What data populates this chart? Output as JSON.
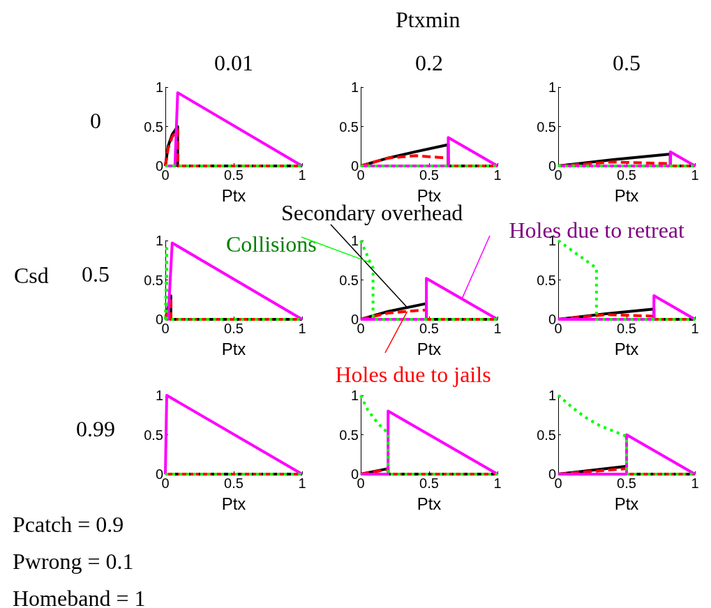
{
  "chart_data": [
    {
      "type": "line",
      "title": "0.01",
      "ylabel": "0",
      "xlabel": "Ptx",
      "xlim": [
        0,
        1
      ],
      "ylim": [
        0,
        1
      ],
      "xticks": [
        0,
        0.5,
        1
      ],
      "yticks": [
        0,
        0.5,
        1
      ],
      "marker": "none",
      "series": [
        {
          "color": "#000000",
          "line_style": "solid",
          "x": [
            0,
            0.02,
            0.05,
            0.09,
            0.09,
            1
          ],
          "values": [
            0,
            0.25,
            0.4,
            0.5,
            0,
            0
          ]
        },
        {
          "color": "#ff0000",
          "line_style": "dashed",
          "x": [
            0,
            0.02,
            0.05,
            0.09,
            0.09,
            1
          ],
          "values": [
            0,
            0.22,
            0.37,
            0.46,
            0,
            0
          ]
        },
        {
          "color": "#ff00ff",
          "line_style": "solid",
          "x": [
            0,
            0.07,
            0.09,
            1
          ],
          "values": [
            0,
            0,
            0.93,
            0
          ]
        },
        {
          "color": "#00ff00",
          "line_style": "dotted",
          "x": [
            0,
            1
          ],
          "values": [
            0,
            0
          ]
        }
      ]
    },
    {
      "type": "line",
      "title": "0.2",
      "xlabel": "Ptx",
      "annotations": [
        "Ptxmin"
      ],
      "xlim": [
        0,
        1
      ],
      "ylim": [
        0,
        1
      ],
      "xticks": [
        0,
        0.5,
        1
      ],
      "yticks": [
        0,
        0.5,
        1
      ],
      "marker": "none",
      "series": [
        {
          "color": "#000000",
          "line_style": "solid",
          "x": [
            0,
            0.2,
            0.4,
            0.64,
            0.64,
            1
          ],
          "values": [
            0,
            0.1,
            0.18,
            0.27,
            0,
            0
          ]
        },
        {
          "color": "#ff0000",
          "line_style": "dashed",
          "x": [
            0,
            0.2,
            0.4,
            0.64,
            0.64,
            1
          ],
          "values": [
            0,
            0.1,
            0.13,
            0.1,
            0,
            0
          ]
        },
        {
          "color": "#ff00ff",
          "line_style": "solid",
          "x": [
            0,
            0.64,
            0.64,
            1
          ],
          "values": [
            0,
            0,
            0.36,
            0
          ]
        },
        {
          "color": "#00ff00",
          "line_style": "dotted",
          "x": [
            0,
            1
          ],
          "values": [
            0,
            0
          ]
        }
      ]
    },
    {
      "type": "line",
      "title": "0.5",
      "xlabel": "Ptx",
      "xlim": [
        0,
        1
      ],
      "ylim": [
        0,
        1
      ],
      "xticks": [
        0,
        0.5,
        1
      ],
      "yticks": [
        0,
        0.5,
        1
      ],
      "marker": "none",
      "series": [
        {
          "color": "#000000",
          "line_style": "solid",
          "x": [
            0,
            0.4,
            0.82,
            0.82,
            1
          ],
          "values": [
            0,
            0.08,
            0.15,
            0,
            0
          ]
        },
        {
          "color": "#ff0000",
          "line_style": "dashed",
          "x": [
            0,
            0.4,
            0.82,
            0.82,
            1
          ],
          "values": [
            0,
            0.05,
            0.03,
            0,
            0
          ]
        },
        {
          "color": "#ff00ff",
          "line_style": "solid",
          "x": [
            0,
            0.82,
            0.82,
            1
          ],
          "values": [
            0,
            0,
            0.18,
            0
          ]
        },
        {
          "color": "#00ff00",
          "line_style": "dotted",
          "x": [
            0,
            1
          ],
          "values": [
            0,
            0
          ]
        }
      ]
    },
    {
      "type": "line",
      "ylabel": "0.5",
      "xlabel": "Ptx",
      "annotations": [
        "Csd"
      ],
      "xlim": [
        0,
        1
      ],
      "ylim": [
        0,
        1
      ],
      "xticks": [
        0,
        0.5,
        1
      ],
      "yticks": [
        0,
        0.5,
        1
      ],
      "marker": "none",
      "series": [
        {
          "color": "#000000",
          "line_style": "solid",
          "x": [
            0,
            0.04,
            0.04,
            1
          ],
          "values": [
            0,
            0.3,
            0,
            0
          ]
        },
        {
          "color": "#ff0000",
          "line_style": "dashed",
          "x": [
            0,
            0.04,
            0.04,
            1
          ],
          "values": [
            0,
            0.28,
            0,
            0
          ]
        },
        {
          "color": "#ff00ff",
          "line_style": "solid",
          "x": [
            0,
            0.02,
            0.05,
            1
          ],
          "values": [
            0,
            0,
            0.97,
            0
          ]
        },
        {
          "color": "#00ff00",
          "line_style": "dotted",
          "x": [
            0,
            0.01,
            0.01,
            1
          ],
          "values": [
            0,
            0.9,
            0,
            0
          ]
        }
      ]
    },
    {
      "type": "line",
      "xlabel": "Ptx",
      "xlim": [
        0,
        1
      ],
      "ylim": [
        0,
        1
      ],
      "xticks": [
        0,
        0.5,
        1
      ],
      "yticks": [
        0,
        0.5,
        1
      ],
      "marker": "none",
      "series": [
        {
          "name": "Secondary overhead",
          "color": "#000000",
          "line_style": "solid",
          "x": [
            0,
            0.2,
            0.48,
            0.48,
            1
          ],
          "values": [
            0,
            0.1,
            0.2,
            0,
            0
          ]
        },
        {
          "name": "Holes due to jails",
          "color": "#ff0000",
          "line_style": "dashed",
          "x": [
            0,
            0.2,
            0.48,
            0.48,
            1
          ],
          "values": [
            0,
            0.08,
            0.12,
            0,
            0
          ]
        },
        {
          "name": "Holes due to retreat",
          "color": "#ff00ff",
          "line_style": "solid",
          "x": [
            0,
            0.48,
            0.48,
            1
          ],
          "values": [
            0,
            0,
            0.52,
            0
          ]
        },
        {
          "name": "Collisions",
          "color": "#00ff00",
          "line_style": "dotted",
          "x": [
            0,
            0.07,
            0.09,
            0.09,
            1
          ],
          "values": [
            1,
            0.72,
            0.65,
            0,
            0
          ]
        }
      ]
    },
    {
      "type": "line",
      "xlabel": "Ptx",
      "xlim": [
        0,
        1
      ],
      "ylim": [
        0,
        1
      ],
      "xticks": [
        0,
        0.5,
        1
      ],
      "yticks": [
        0,
        0.5,
        1
      ],
      "marker": "none",
      "series": [
        {
          "color": "#000000",
          "line_style": "solid",
          "x": [
            0,
            0.35,
            0.7,
            0.7,
            1
          ],
          "values": [
            0,
            0.07,
            0.13,
            0,
            0
          ]
        },
        {
          "color": "#ff0000",
          "line_style": "dashed",
          "x": [
            0,
            0.35,
            0.7,
            0.7,
            1
          ],
          "values": [
            0,
            0.06,
            0.04,
            0,
            0
          ]
        },
        {
          "color": "#ff00ff",
          "line_style": "solid",
          "x": [
            0,
            0.7,
            0.7,
            1
          ],
          "values": [
            0,
            0,
            0.3,
            0
          ]
        },
        {
          "color": "#00ff00",
          "line_style": "dotted",
          "x": [
            0,
            0.28,
            0.28,
            1
          ],
          "values": [
            1,
            0.65,
            0,
            0
          ]
        }
      ]
    },
    {
      "type": "line",
      "ylabel": "0.99",
      "xlabel": "Ptx",
      "annotations": [
        "Pcatch = 0.9",
        "Pwrong = 0.1",
        "Homeband = 1"
      ],
      "xlim": [
        0,
        1
      ],
      "ylim": [
        0,
        1
      ],
      "xticks": [
        0,
        0.5,
        1
      ],
      "yticks": [
        0,
        0.5,
        1
      ],
      "marker": "none",
      "series": [
        {
          "color": "#000000",
          "line_style": "solid",
          "x": [
            0,
            1
          ],
          "values": [
            0,
            0
          ]
        },
        {
          "color": "#ff0000",
          "line_style": "dashed",
          "x": [
            0,
            1
          ],
          "values": [
            0,
            0
          ]
        },
        {
          "color": "#ff00ff",
          "line_style": "solid",
          "x": [
            0,
            0.01,
            1
          ],
          "values": [
            0,
            1,
            0
          ]
        },
        {
          "color": "#00ff00",
          "line_style": "dotted",
          "x": [
            0,
            1
          ],
          "values": [
            0,
            0
          ]
        }
      ]
    },
    {
      "type": "line",
      "xlabel": "Ptx",
      "xlim": [
        0,
        1
      ],
      "ylim": [
        0,
        1
      ],
      "xticks": [
        0,
        0.5,
        1
      ],
      "yticks": [
        0,
        0.5,
        1
      ],
      "marker": "none",
      "series": [
        {
          "color": "#000000",
          "line_style": "solid",
          "x": [
            0,
            0.2,
            0.2,
            1
          ],
          "values": [
            0,
            0.07,
            0,
            0
          ]
        },
        {
          "color": "#ff0000",
          "line_style": "dashed",
          "x": [
            0,
            0.2,
            0.2,
            1
          ],
          "values": [
            0,
            0.06,
            0,
            0
          ]
        },
        {
          "color": "#ff00ff",
          "line_style": "solid",
          "x": [
            0,
            0.2,
            0.2,
            1
          ],
          "values": [
            0,
            0,
            0.8,
            0
          ]
        },
        {
          "color": "#00ff00",
          "line_style": "dotted",
          "x": [
            0,
            0.05,
            0.1,
            0.15,
            0.2,
            0.2,
            1
          ],
          "values": [
            1,
            0.82,
            0.7,
            0.6,
            0.52,
            0,
            0
          ]
        }
      ]
    },
    {
      "type": "line",
      "xlabel": "Ptx",
      "xlim": [
        0,
        1
      ],
      "ylim": [
        0,
        1
      ],
      "xticks": [
        0,
        0.5,
        1
      ],
      "yticks": [
        0,
        0.5,
        1
      ],
      "marker": "none",
      "series": [
        {
          "color": "#000000",
          "line_style": "solid",
          "x": [
            0,
            0.5,
            0.5,
            1
          ],
          "values": [
            0,
            0.1,
            0,
            0
          ]
        },
        {
          "color": "#ff0000",
          "line_style": "dashed",
          "x": [
            0,
            0.5,
            0.5,
            1
          ],
          "values": [
            0,
            0.07,
            0,
            0
          ]
        },
        {
          "color": "#ff00ff",
          "line_style": "solid",
          "x": [
            0,
            0.5,
            0.5,
            1
          ],
          "values": [
            0,
            0,
            0.5,
            0
          ]
        },
        {
          "color": "#00ff00",
          "line_style": "dotted",
          "x": [
            0,
            0.1,
            0.2,
            0.3,
            0.4,
            0.5,
            0.5,
            1
          ],
          "values": [
            1,
            0.85,
            0.72,
            0.62,
            0.55,
            0.48,
            0,
            0
          ]
        }
      ]
    }
  ]
}
